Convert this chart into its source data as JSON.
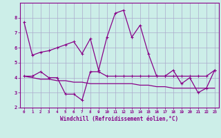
{
  "xlabel": "Windchill (Refroidissement éolien,°C)",
  "background_color": "#cceee8",
  "grid_color": "#aaaacc",
  "line_color": "#880088",
  "hours": [
    0,
    1,
    2,
    3,
    4,
    5,
    6,
    7,
    8,
    9,
    10,
    11,
    12,
    13,
    14,
    15,
    16,
    17,
    18,
    19,
    20,
    21,
    22,
    23
  ],
  "series1": [
    7.7,
    5.5,
    5.7,
    5.8,
    6.0,
    6.2,
    6.4,
    5.6,
    6.6,
    4.5,
    6.7,
    8.3,
    8.5,
    6.7,
    7.5,
    5.6,
    4.1,
    4.1,
    4.5,
    3.6,
    4.0,
    3.0,
    3.3,
    4.5
  ],
  "series2": [
    4.1,
    4.1,
    4.4,
    4.0,
    4.0,
    2.9,
    2.9,
    2.5,
    4.4,
    4.4,
    4.1,
    4.1,
    4.1,
    4.1,
    4.1,
    4.1,
    4.1,
    4.1,
    4.1,
    4.1,
    4.1,
    4.1,
    4.1,
    4.5
  ],
  "series3": [
    4.1,
    4.0,
    3.9,
    3.9,
    3.8,
    3.8,
    3.7,
    3.7,
    3.6,
    3.6,
    3.6,
    3.6,
    3.6,
    3.6,
    3.5,
    3.5,
    3.4,
    3.4,
    3.3,
    3.3,
    3.3,
    3.3,
    3.3,
    3.3
  ],
  "ylim": [
    2,
    9
  ],
  "yticks": [
    2,
    3,
    4,
    5,
    6,
    7,
    8
  ],
  "xlim": [
    -0.5,
    23.5
  ]
}
